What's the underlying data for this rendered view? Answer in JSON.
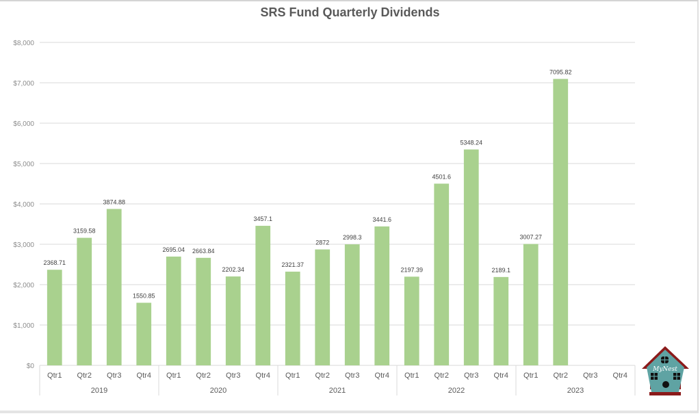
{
  "chart_data": {
    "type": "bar",
    "title": "SRS Fund Quarterly Dividends",
    "xlabel": "",
    "ylabel": "",
    "ylim": [
      0,
      8000
    ],
    "y_ticks": [
      "$0",
      "$1,000",
      "$2,000",
      "$3,000",
      "$4,000",
      "$5,000",
      "$6,000",
      "$7,000",
      "$8,000"
    ],
    "y_tick_values": [
      0,
      1000,
      2000,
      3000,
      4000,
      5000,
      6000,
      7000,
      8000
    ],
    "grid": true,
    "legend": "none",
    "bar_color": "#a9d18e",
    "groups": [
      {
        "year": "2019",
        "categories": [
          "Qtr1",
          "Qtr2",
          "Qtr3",
          "Qtr4"
        ],
        "values": [
          2368.71,
          3159.58,
          3874.88,
          1550.85
        ],
        "labels": [
          "2368.71",
          "3159.58",
          "3874.88",
          "1550.85"
        ]
      },
      {
        "year": "2020",
        "categories": [
          "Qtr1",
          "Qtr2",
          "Qtr3",
          "Qtr4"
        ],
        "values": [
          2695.04,
          2663.84,
          2202.34,
          3457.1
        ],
        "labels": [
          "2695.04",
          "2663.84",
          "2202.34",
          "3457.1"
        ]
      },
      {
        "year": "2021",
        "categories": [
          "Qtr1",
          "Qtr2",
          "Qtr3",
          "Qtr4"
        ],
        "values": [
          2321.37,
          2872,
          2998.3,
          3441.6
        ],
        "labels": [
          "2321.37",
          "2872",
          "2998.3",
          "3441.6"
        ]
      },
      {
        "year": "2022",
        "categories": [
          "Qtr1",
          "Qtr2",
          "Qtr3",
          "Qtr4"
        ],
        "values": [
          2197.39,
          4501.6,
          5348.24,
          2189.1
        ],
        "labels": [
          "2197.39",
          "4501.6",
          "5348.24",
          "2189.1"
        ]
      },
      {
        "year": "2023",
        "categories": [
          "Qtr1",
          "Qtr2",
          "Qtr3",
          "Qtr4"
        ],
        "values": [
          3007.27,
          7095.82,
          null,
          null
        ],
        "labels": [
          "3007.27",
          "7095.82",
          null,
          null
        ]
      }
    ]
  },
  "logo": {
    "text": "MyNest",
    "roof_color": "#9b1c1c",
    "body_color": "#5fa3a3"
  }
}
